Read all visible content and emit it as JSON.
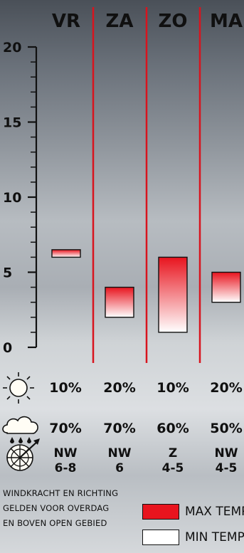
{
  "chart_data": {
    "type": "range-bar",
    "categories": [
      "VR",
      "ZA",
      "ZO",
      "MA"
    ],
    "ylim": [
      0,
      20
    ],
    "y_ticks": [
      0,
      5,
      10,
      15,
      20
    ],
    "series": [
      {
        "name": "MAX TEMP.",
        "values": [
          6.5,
          4,
          6,
          5
        ]
      },
      {
        "name": "MIN TEMP.",
        "values": [
          6,
          2,
          1,
          3
        ]
      }
    ],
    "grid": false,
    "legend_position": "bottom-right"
  },
  "rows": {
    "sun_chance": [
      "10%",
      "20%",
      "10%",
      "20%"
    ],
    "rain_chance": [
      "70%",
      "70%",
      "60%",
      "50%"
    ],
    "wind_direction": [
      "NW",
      "NW",
      "Z",
      "NW"
    ],
    "wind_force": [
      "6-8",
      "6",
      "4-5",
      "4-5"
    ]
  },
  "icons": {
    "sun": "sun-icon",
    "rain": "rain-cloud-icon",
    "wind": "wind-rose-icon"
  },
  "note": {
    "line1": "WINDKRACHT EN RICHTING",
    "line2": "GELDEN VOOR OVERDAG",
    "line3": "EN BOVEN OPEN GEBIED"
  },
  "legend": {
    "max_label": "MAX TEMP.",
    "min_label": "MIN TEMP."
  },
  "colors": {
    "max": "#e8141e",
    "min": "#ffffff",
    "divider": "#d8141e"
  }
}
